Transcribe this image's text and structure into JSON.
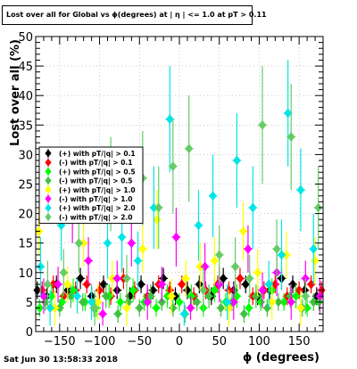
{
  "title": "Lost over all for Global vs ϕ(degrees) at | η | <= 1.0 at pT > 0.11",
  "timestamp": "Sat Jun 30 13:58:33 2018",
  "chart_data": {
    "type": "scatter",
    "xlabel": "ϕ (degrees)",
    "ylabel": "Lost over all (%)",
    "xlim": [
      -180,
      180
    ],
    "ylim": [
      0,
      50
    ],
    "xticks": [
      -150,
      -100,
      -50,
      0,
      50,
      100,
      150
    ],
    "yticks": [
      0,
      5,
      10,
      15,
      20,
      25,
      30,
      35,
      40,
      45,
      50
    ],
    "grid": true,
    "legend_position": "left-middle",
    "series": [
      {
        "name": "(+) with pT/|q| > 0.1",
        "color": "#000000",
        "marker": "diamond",
        "x": [
          -178,
          -166,
          -154,
          -140,
          -124,
          -110,
          -95,
          -78,
          -62,
          -48,
          -33,
          -20,
          -5,
          10,
          25,
          40,
          55,
          68,
          83,
          98,
          113,
          128,
          142,
          157,
          172
        ],
        "y": [
          7,
          6,
          8,
          7,
          9,
          6,
          8,
          7,
          6,
          8,
          7,
          9,
          6,
          7,
          8,
          6,
          9,
          7,
          8,
          6,
          7,
          9,
          8,
          7,
          6
        ],
        "err": [
          1.5,
          1.5,
          1.5,
          1.5,
          1.8,
          1.5,
          1.5,
          1.5,
          1.5,
          1.5,
          1.5,
          1.8,
          1.5,
          1.5,
          1.5,
          1.5,
          1.8,
          1.5,
          1.5,
          1.5,
          1.5,
          1.8,
          1.5,
          1.5,
          1.5
        ]
      },
      {
        "name": "(-) with pT/|q| > 0.1",
        "color": "#ff0000",
        "marker": "diamond",
        "x": [
          -172,
          -158,
          -145,
          -130,
          -116,
          -100,
          -86,
          -70,
          -56,
          -40,
          -26,
          -12,
          3,
          18,
          33,
          48,
          62,
          76,
          92,
          106,
          120,
          135,
          150,
          165,
          178
        ],
        "y": [
          7,
          8,
          6,
          7,
          8,
          7,
          6,
          9,
          7,
          6,
          8,
          7,
          8,
          6,
          7,
          8,
          7,
          9,
          6,
          7,
          8,
          6,
          7,
          8,
          7
        ],
        "err": [
          1.5,
          1.5,
          1.5,
          1.5,
          1.5,
          1.5,
          1.5,
          1.8,
          1.5,
          1.5,
          1.5,
          1.5,
          1.5,
          1.5,
          1.5,
          1.5,
          1.5,
          1.8,
          1.5,
          1.5,
          1.5,
          1.5,
          1.5,
          1.5,
          1.5
        ]
      },
      {
        "name": "(+) with pT/|q| > 0.5",
        "color": "#00ff00",
        "marker": "diamond",
        "x": [
          -175,
          -160,
          -147,
          -133,
          -118,
          -104,
          -88,
          -74,
          -58,
          -44,
          -29,
          -15,
          0,
          15,
          30,
          44,
          58,
          72,
          87,
          102,
          116,
          131,
          146,
          160,
          175
        ],
        "y": [
          4,
          6,
          5,
          7,
          5,
          4,
          6,
          5,
          7,
          5,
          4,
          6,
          5,
          6,
          4,
          7,
          5,
          6,
          4,
          5,
          7,
          5,
          6,
          4,
          5
        ],
        "err": [
          1.5,
          2.0,
          1.5,
          2.0,
          1.5,
          1.5,
          2.0,
          1.5,
          2.0,
          1.5,
          1.5,
          2.0,
          1.5,
          2.0,
          1.5,
          2.0,
          1.5,
          2.0,
          1.5,
          1.5,
          2.0,
          1.5,
          2.0,
          1.5,
          1.5
        ]
      },
      {
        "name": "(-) with pT/|q| > 0.5",
        "color": "#40c040",
        "marker": "diamond",
        "x": [
          -168,
          -150,
          -136,
          -121,
          -107,
          -92,
          -77,
          -64,
          -50,
          -36,
          -22,
          -8,
          7,
          22,
          37,
          52,
          66,
          81,
          96,
          110,
          124,
          139,
          154,
          168
        ],
        "y": [
          5,
          4,
          6,
          5,
          4,
          6,
          3,
          5,
          4,
          6,
          5,
          4,
          3,
          5,
          6,
          4,
          5,
          3,
          6,
          4,
          5,
          6,
          4,
          5
        ],
        "err": [
          1.5,
          1.5,
          2.0,
          1.5,
          1.5,
          2.0,
          1.5,
          1.5,
          1.5,
          2.0,
          1.5,
          1.5,
          1.5,
          1.5,
          2.0,
          1.5,
          1.5,
          1.5,
          2.0,
          1.5,
          1.5,
          2.0,
          1.5,
          1.5
        ]
      },
      {
        "name": "(+) with pT/|q| > 1.0",
        "color": "#ffff00",
        "marker": "diamond",
        "x": [
          -176,
          -156,
          -140,
          -120,
          -102,
          -84,
          -66,
          -46,
          -28,
          -10,
          8,
          26,
          44,
          62,
          80,
          98,
          116,
          134,
          152,
          170
        ],
        "y": [
          17,
          4,
          8,
          15,
          5,
          9,
          4,
          14,
          19,
          6,
          9,
          11,
          12,
          4,
          17,
          10,
          5,
          13,
          4,
          12
        ],
        "err": [
          4,
          3,
          3,
          4,
          3,
          3,
          3,
          4,
          5,
          3,
          3,
          4,
          4,
          3,
          5,
          4,
          3,
          4,
          3,
          4
        ]
      },
      {
        "name": "(-) with pT/|q| > 1.0",
        "color": "#ff00ff",
        "marker": "diamond",
        "x": [
          -170,
          -152,
          -134,
          -114,
          -96,
          -78,
          -60,
          -40,
          -22,
          -4,
          14,
          32,
          50,
          68,
          86,
          104,
          122,
          140,
          158,
          176
        ],
        "y": [
          6,
          8,
          19,
          12,
          3,
          9,
          15,
          5,
          8,
          16,
          4,
          11,
          8,
          5,
          14,
          7,
          10,
          5,
          9,
          6
        ],
        "err": [
          3,
          3,
          4,
          4,
          2,
          3,
          4,
          3,
          3,
          5,
          2,
          4,
          3,
          3,
          4,
          3,
          4,
          3,
          3,
          3
        ]
      },
      {
        "name": "(+) with pT/|q| > 2.0",
        "color": "#00e5e5",
        "marker": "diamond",
        "x": [
          -174,
          -162,
          -148,
          -128,
          -110,
          -90,
          -72,
          -52,
          -32,
          -12,
          6,
          24,
          42,
          60,
          72,
          92,
          112,
          128,
          136,
          152,
          168
        ],
        "y": [
          11,
          4,
          18,
          6,
          5,
          15,
          16,
          12,
          21,
          36,
          3,
          18,
          23,
          5,
          29,
          21,
          8,
          13,
          37,
          24,
          14
        ],
        "err": [
          5,
          3,
          6,
          3,
          3,
          6,
          6,
          5,
          7,
          9,
          2,
          6,
          7,
          3,
          8,
          7,
          4,
          6,
          9,
          7,
          6
        ]
      },
      {
        "name": "(-) with pT/|q| > 2.0",
        "color": "#66cc66",
        "marker": "diamond",
        "x": [
          -165,
          -145,
          -126,
          -106,
          -86,
          -66,
          -46,
          -26,
          -8,
          12,
          30,
          50,
          70,
          88,
          104,
          122,
          140,
          158,
          174
        ],
        "y": [
          8,
          10,
          15,
          4,
          25,
          9,
          26,
          21,
          28,
          31,
          7,
          13,
          11,
          9,
          35,
          14,
          33,
          6,
          21
        ],
        "err": [
          4,
          4,
          5,
          3,
          8,
          4,
          8,
          7,
          8,
          9,
          4,
          5,
          5,
          4,
          10,
          5,
          9,
          3,
          7
        ]
      }
    ]
  }
}
